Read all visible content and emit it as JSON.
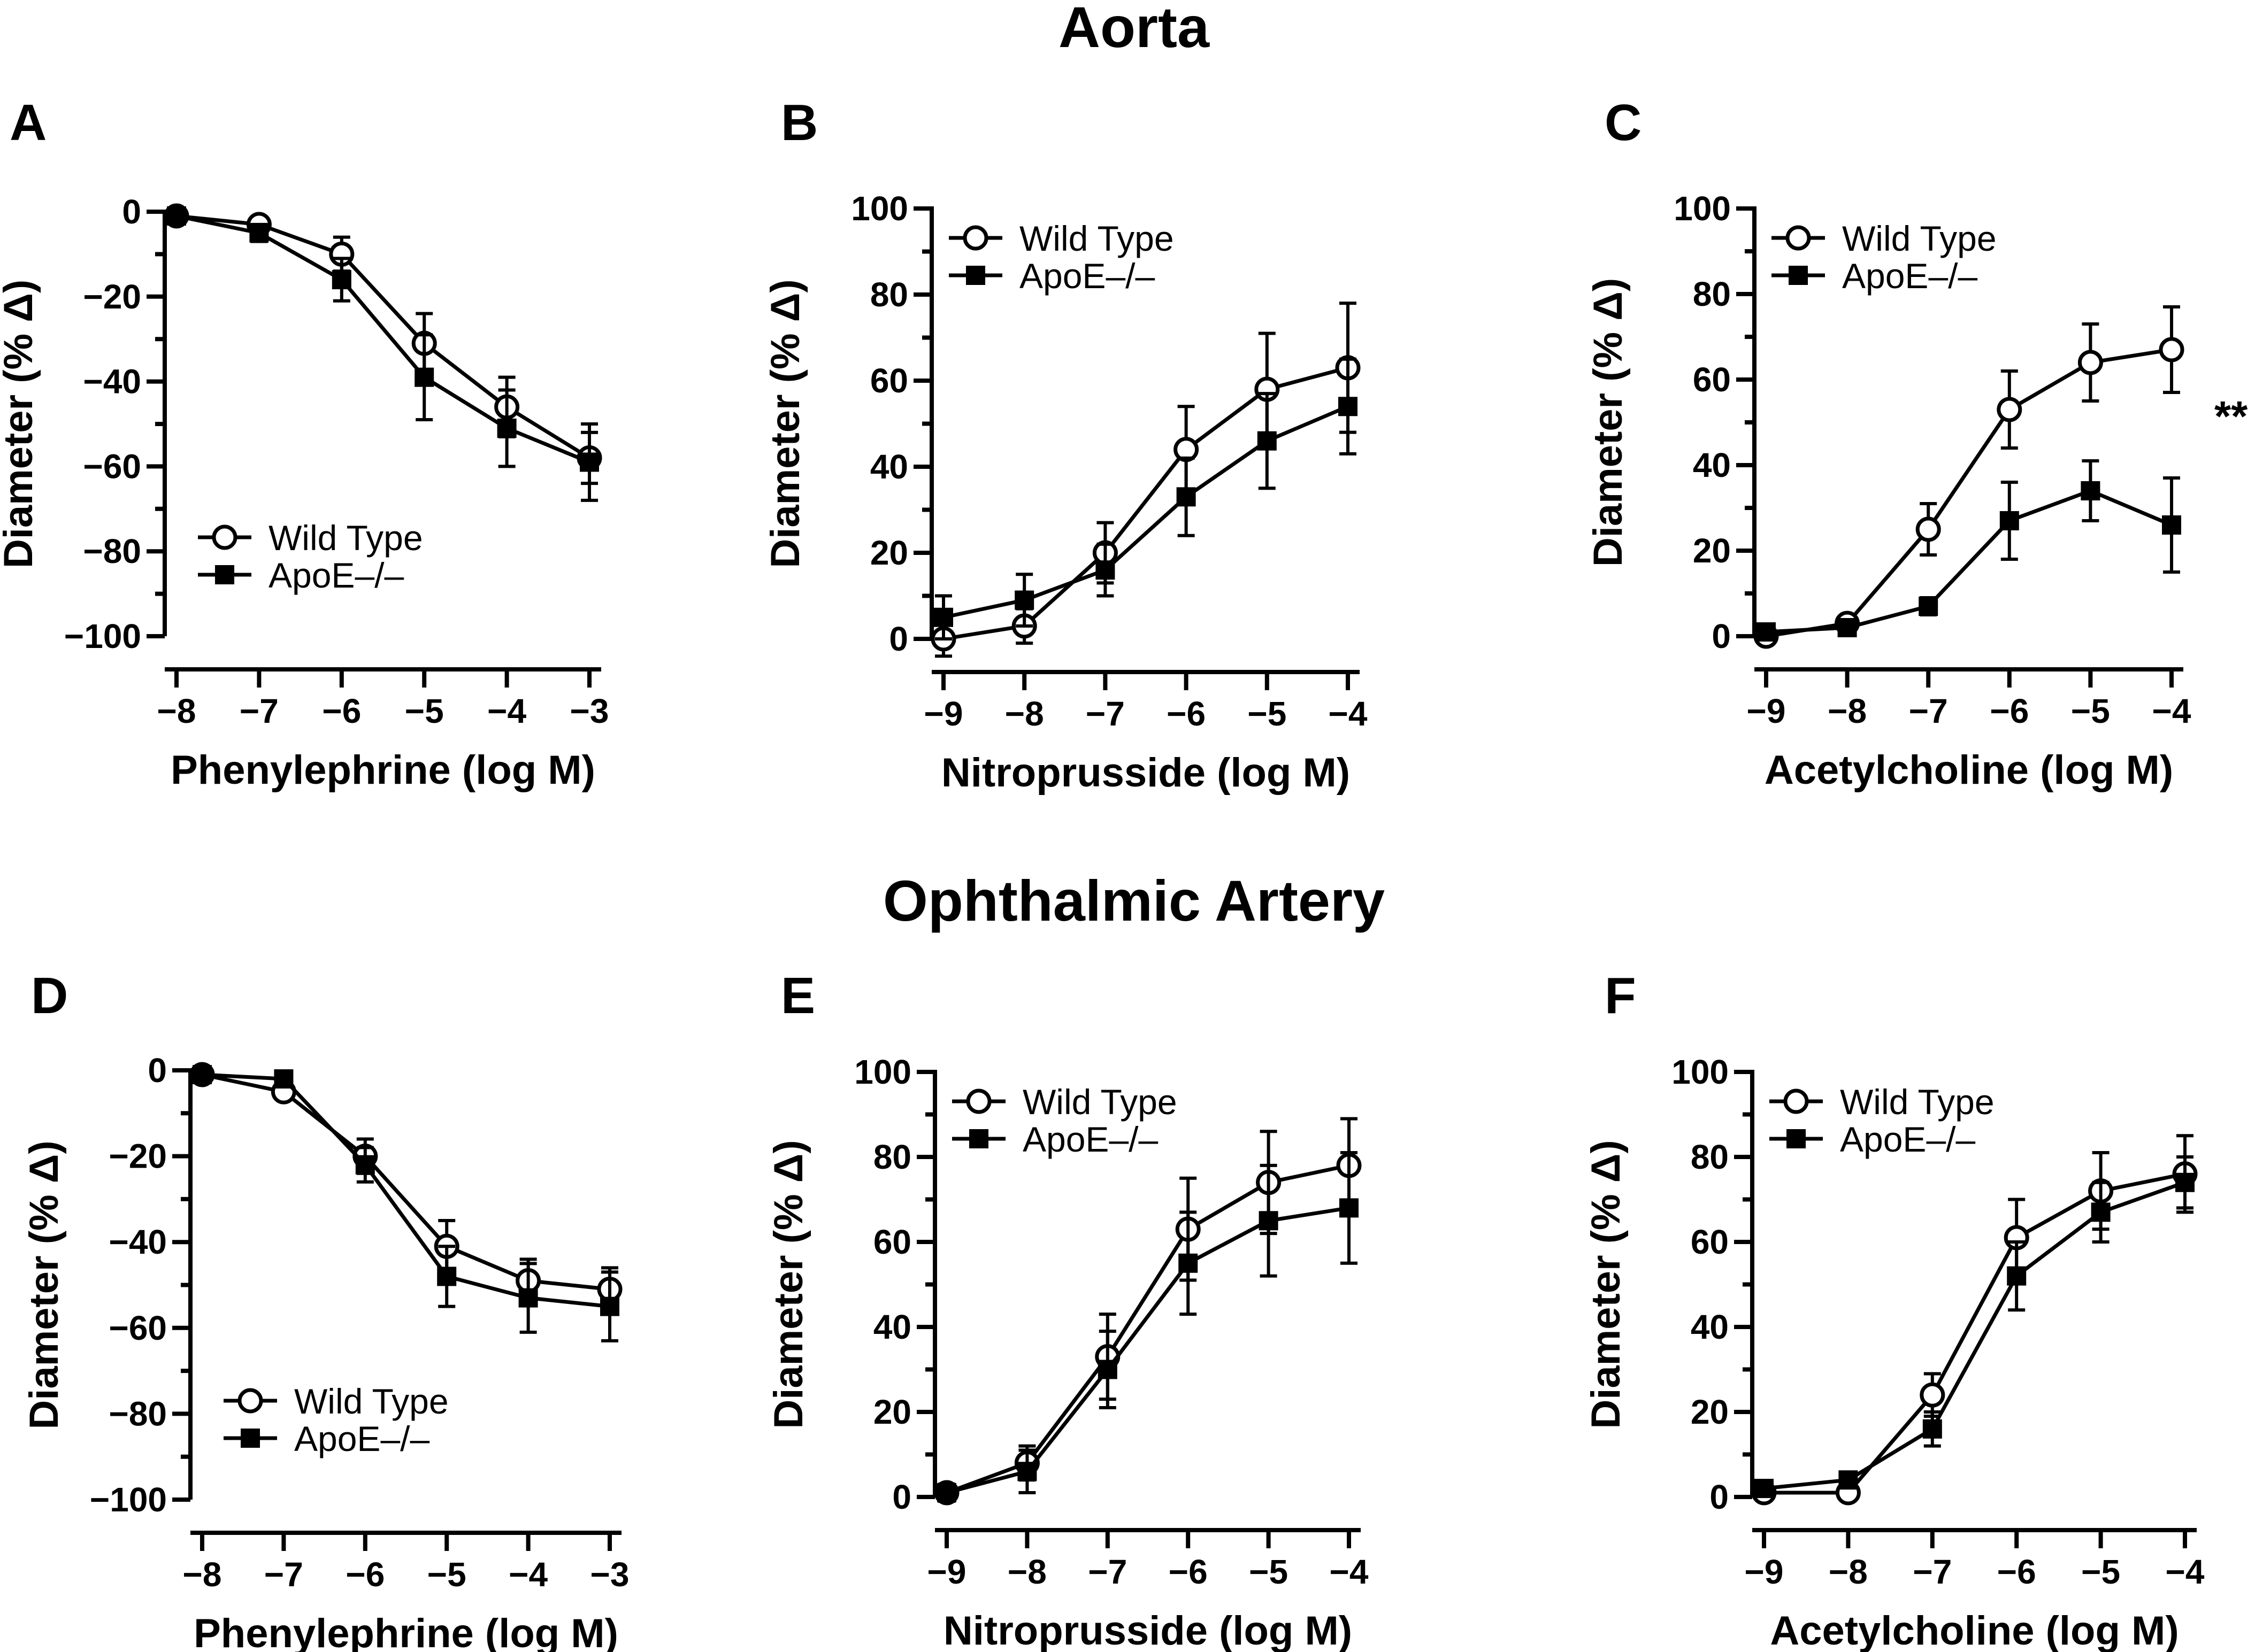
{
  "sections": [
    {
      "title": "Aorta"
    },
    {
      "title": "Ophthalmic Artery"
    }
  ],
  "chart_data": [
    {
      "panel": "A",
      "type": "line",
      "xlabel": "Phenylephrine (log M)",
      "ylabel": "Diameter (% Δ)",
      "x": [
        -8,
        -7,
        -6,
        -5,
        -4,
        -3
      ],
      "xticks": [
        -8,
        -7,
        -6,
        -5,
        -4,
        -3
      ],
      "xtick_labels": [
        "−8",
        "−7",
        "−6",
        "−5",
        "−4",
        "−3"
      ],
      "yticks": [
        0,
        -20,
        -40,
        -60,
        -80,
        -100
      ],
      "ytick_labels": [
        "0",
        "−20",
        "−40",
        "−60",
        "−80",
        "−100"
      ],
      "xlim": [
        -8,
        -3
      ],
      "ylim": [
        -100,
        0
      ],
      "legend_position": "lower-left",
      "series": [
        {
          "name": "Wild Type",
          "marker": "open-circle",
          "values": [
            -1,
            -3,
            -10,
            -31,
            -46,
            -58
          ],
          "err": [
            1,
            1,
            4,
            7,
            7,
            6
          ]
        },
        {
          "name": "ApoE–/–",
          "marker": "filled-square",
          "values": [
            -1,
            -5,
            -16,
            -39,
            -51,
            -59
          ],
          "err": [
            1,
            2,
            5,
            10,
            9,
            9
          ]
        }
      ]
    },
    {
      "panel": "B",
      "type": "line",
      "xlabel": "Nitroprusside (log M)",
      "ylabel": "Diameter (% Δ)",
      "x": [
        -9,
        -8,
        -7,
        -6,
        -5,
        -4
      ],
      "xticks": [
        -9,
        -8,
        -7,
        -6,
        -5,
        -4
      ],
      "xtick_labels": [
        "−9",
        "−8",
        "−7",
        "−6",
        "−5",
        "−4"
      ],
      "yticks": [
        0,
        20,
        40,
        60,
        80,
        100
      ],
      "ytick_labels": [
        "0",
        "20",
        "40",
        "60",
        "80",
        "100"
      ],
      "xlim": [
        -9,
        -4
      ],
      "ylim": [
        0,
        100
      ],
      "legend_position": "top-left",
      "series": [
        {
          "name": "Wild Type",
          "marker": "open-circle",
          "values": [
            0,
            3,
            20,
            44,
            58,
            63
          ],
          "err": [
            4,
            4,
            7,
            10,
            13,
            15
          ]
        },
        {
          "name": "ApoE–/–",
          "marker": "filled-square",
          "values": [
            5,
            9,
            16,
            33,
            46,
            54
          ],
          "err": [
            5,
            6,
            6,
            9,
            11,
            11
          ]
        }
      ]
    },
    {
      "panel": "C",
      "type": "line",
      "xlabel": "Acetylcholine (log M)",
      "ylabel": "Diameter (% Δ)",
      "x": [
        -9,
        -8,
        -7,
        -6,
        -5,
        -4
      ],
      "xticks": [
        -9,
        -8,
        -7,
        -6,
        -5,
        -4
      ],
      "xtick_labels": [
        "−9",
        "−8",
        "−7",
        "−6",
        "−5",
        "−4"
      ],
      "yticks": [
        0,
        20,
        40,
        60,
        80,
        100
      ],
      "ytick_labels": [
        "0",
        "20",
        "40",
        "60",
        "80",
        "100"
      ],
      "xlim": [
        -9,
        -4
      ],
      "ylim": [
        0,
        100
      ],
      "legend_position": "top-left",
      "annotation": "**",
      "series": [
        {
          "name": "Wild Type",
          "marker": "open-circle",
          "values": [
            0,
            3,
            25,
            53,
            64,
            67
          ],
          "err": [
            1,
            1,
            6,
            9,
            9,
            10
          ]
        },
        {
          "name": "ApoE–/–",
          "marker": "filled-square",
          "values": [
            1,
            2,
            7,
            27,
            34,
            26
          ],
          "err": [
            1,
            1,
            2,
            9,
            7,
            11
          ]
        }
      ]
    },
    {
      "panel": "D",
      "type": "line",
      "xlabel": "Phenylephrine (log M)",
      "ylabel": "Diameter (% Δ)",
      "x": [
        -8,
        -7,
        -6,
        -5,
        -4,
        -3
      ],
      "xticks": [
        -8,
        -7,
        -6,
        -5,
        -4,
        -3
      ],
      "xtick_labels": [
        "−8",
        "−7",
        "−6",
        "−5",
        "−4",
        "−3"
      ],
      "yticks": [
        0,
        -20,
        -40,
        -60,
        -80,
        -100
      ],
      "ytick_labels": [
        "0",
        "−20",
        "−40",
        "−60",
        "−80",
        "−100"
      ],
      "xlim": [
        -8,
        -3
      ],
      "ylim": [
        -100,
        0
      ],
      "legend_position": "lower-left",
      "series": [
        {
          "name": "Wild Type",
          "marker": "open-circle",
          "values": [
            -1,
            -5,
            -20,
            -41,
            -49,
            -51
          ],
          "err": [
            1,
            1,
            4,
            6,
            5,
            5
          ]
        },
        {
          "name": "ApoE–/–",
          "marker": "filled-square",
          "values": [
            -1,
            -2,
            -22,
            -48,
            -53,
            -55
          ],
          "err": [
            1,
            1,
            4,
            7,
            8,
            8
          ]
        }
      ]
    },
    {
      "panel": "E",
      "type": "line",
      "xlabel": "Nitroprusside (log M)",
      "ylabel": "Diameter (% Δ)",
      "x": [
        -9,
        -8,
        -7,
        -6,
        -5,
        -4
      ],
      "xticks": [
        -9,
        -8,
        -7,
        -6,
        -5,
        -4
      ],
      "xtick_labels": [
        "−9",
        "−8",
        "−7",
        "−6",
        "−5",
        "−4"
      ],
      "yticks": [
        0,
        20,
        40,
        60,
        80,
        100
      ],
      "ytick_labels": [
        "0",
        "20",
        "40",
        "60",
        "80",
        "100"
      ],
      "xlim": [
        -9,
        -4
      ],
      "ylim": [
        0,
        100
      ],
      "legend_position": "top-left",
      "series": [
        {
          "name": "Wild Type",
          "marker": "open-circle",
          "values": [
            1,
            8,
            33,
            63,
            74,
            78
          ],
          "err": [
            2,
            4,
            10,
            12,
            12,
            11
          ]
        },
        {
          "name": "ApoE–/–",
          "marker": "filled-square",
          "values": [
            1,
            6,
            30,
            55,
            65,
            68
          ],
          "err": [
            2,
            5,
            9,
            12,
            13,
            13
          ]
        }
      ]
    },
    {
      "panel": "F",
      "type": "line",
      "xlabel": "Acetylcholine (log M)",
      "ylabel": "Diameter (% Δ)",
      "x": [
        -9,
        -8,
        -7,
        -6,
        -5,
        -4
      ],
      "xticks": [
        -9,
        -8,
        -7,
        -6,
        -5,
        -4
      ],
      "xtick_labels": [
        "−9",
        "−8",
        "−7",
        "−6",
        "−5",
        "−4"
      ],
      "yticks": [
        0,
        20,
        40,
        60,
        80,
        100
      ],
      "ytick_labels": [
        "0",
        "20",
        "40",
        "60",
        "80",
        "100"
      ],
      "xlim": [
        -9,
        -4
      ],
      "ylim": [
        0,
        100
      ],
      "legend_position": "top-left",
      "series": [
        {
          "name": "Wild Type",
          "marker": "open-circle",
          "values": [
            1,
            1,
            24,
            61,
            72,
            76
          ],
          "err": [
            1,
            1,
            5,
            9,
            9,
            9
          ]
        },
        {
          "name": "ApoE–/–",
          "marker": "filled-square",
          "values": [
            2,
            4,
            16,
            52,
            67,
            74
          ],
          "err": [
            1,
            1,
            4,
            8,
            7,
            6
          ]
        }
      ]
    }
  ]
}
